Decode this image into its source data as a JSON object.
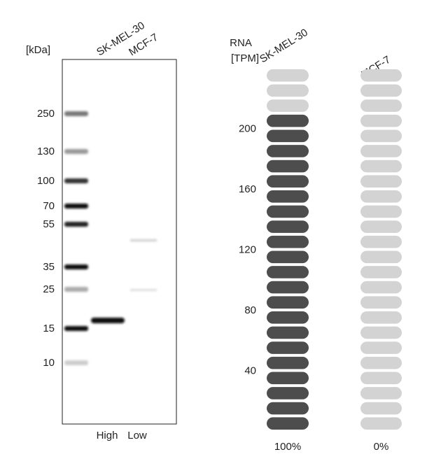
{
  "blot": {
    "unit_label": "[kDa]",
    "lanes": [
      "SK-MEL-30",
      "MCF-7"
    ],
    "markers": [
      "250",
      "130",
      "100",
      "70",
      "55",
      "35",
      "25",
      "15",
      "10"
    ],
    "levels": [
      "High",
      "Low"
    ]
  },
  "rna": {
    "axis_label_1": "RNA",
    "axis_label_2": "[TPM]",
    "ylim": [
      0,
      240
    ],
    "yticks": [
      40,
      80,
      120,
      160,
      200
    ],
    "pills": 24,
    "columns": [
      {
        "label": "SK-MEL-30",
        "filled": 21,
        "percent": "100%"
      },
      {
        "label": "MCF-7",
        "filled": 0,
        "percent": "0%"
      }
    ]
  }
}
